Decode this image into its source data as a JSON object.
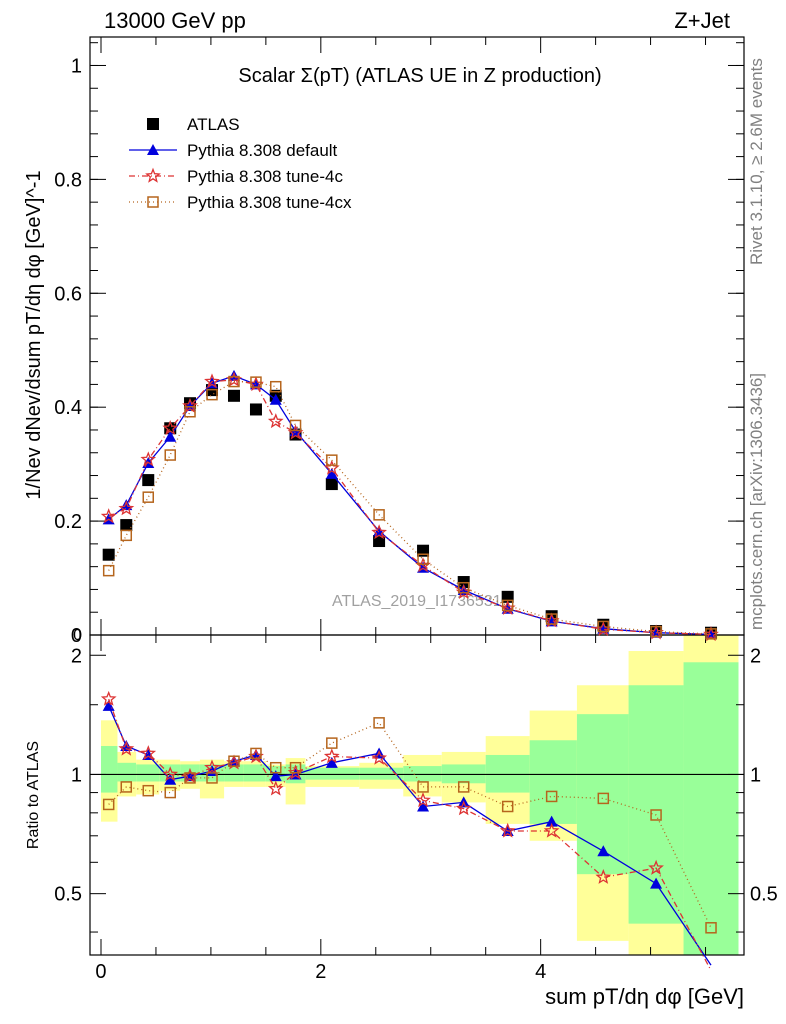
{
  "header": {
    "left": "13000 GeV pp",
    "right": "Z+Jet"
  },
  "side": {
    "rivet": "Rivet 3.1.10, ≥ 2.6M events",
    "mcplots": "mcplots.cern.ch [arXiv:1306.3436]"
  },
  "watermark": "ATLAS_2019_I1736531",
  "chart_data": [
    {
      "type": "scatter",
      "title": "Scalar Σ(pT) (ATLAS UE in Z production)",
      "xlabel": "sum pT/dη dφ [GeV]",
      "ylabel": "1/Nev dNev/dsum pT/dη dφ [GeV]^-1",
      "xlim": [
        -0.1,
        5.85
      ],
      "ylim": [
        0,
        1.05
      ],
      "yticks": [
        0,
        0.2,
        0.4,
        0.6,
        0.8,
        1
      ],
      "ytick_labels": [
        "0",
        "0.2",
        "0.4",
        "0.6",
        "0.8",
        "1"
      ],
      "legend_position": "top-left",
      "x": [
        0.07,
        0.23,
        0.43,
        0.63,
        0.81,
        1.01,
        1.21,
        1.41,
        1.59,
        1.77,
        2.1,
        2.53,
        2.93,
        3.3,
        3.7,
        4.1,
        4.57,
        5.05,
        5.55
      ],
      "series": [
        {
          "name": "ATLAS",
          "color": "#000000",
          "marker": "square",
          "values": [
            0.141,
            0.193,
            0.272,
            0.363,
            0.407,
            0.43,
            0.42,
            0.396,
            0.42,
            0.352,
            0.265,
            0.165,
            0.148,
            0.093,
            0.067,
            0.033,
            0.018,
            0.007,
            0.004
          ]
        },
        {
          "name": "Pythia 8.308 default",
          "color": "#0000dd",
          "marker": "triangle",
          "dash": "",
          "values": [
            0.203,
            0.228,
            0.302,
            0.348,
            0.402,
            0.442,
            0.455,
            0.44,
            0.413,
            0.358,
            0.283,
            0.182,
            0.118,
            0.079,
            0.046,
            0.024,
            0.011,
            0.004,
            0.001
          ]
        },
        {
          "name": "Pythia 8.308 tune-4c",
          "color": "#dd3333",
          "marker": "star",
          "dash": "6,3,1,3",
          "values": [
            0.208,
            0.222,
            0.308,
            0.363,
            0.402,
            0.445,
            0.448,
            0.44,
            0.375,
            0.355,
            0.293,
            0.18,
            0.122,
            0.075,
            0.047,
            0.025,
            0.01,
            0.004,
            0.001
          ]
        },
        {
          "name": "Pythia 8.308 tune-4cx",
          "color": "#b5651d",
          "marker": "opensquare",
          "dash": "1,3",
          "values": [
            0.113,
            0.175,
            0.242,
            0.316,
            0.392,
            0.422,
            0.445,
            0.444,
            0.436,
            0.368,
            0.307,
            0.211,
            0.133,
            0.083,
            0.052,
            0.028,
            0.015,
            0.006,
            0.002
          ]
        }
      ]
    },
    {
      "type": "scatter",
      "ylabel": "Ratio to ATLAS",
      "xlim": [
        -0.1,
        5.85
      ],
      "ylim": [
        0.35,
        2.25
      ],
      "xticks": [
        0,
        2,
        4
      ],
      "xtick_labels": [
        "0",
        "2",
        "4"
      ],
      "yticks": [
        0.5,
        1,
        2
      ],
      "ytick_labels": [
        "0.5",
        "1",
        "2"
      ],
      "bin_edges": [
        0,
        0.15,
        0.32,
        0.53,
        0.72,
        0.9,
        1.12,
        1.3,
        1.5,
        1.68,
        1.86,
        2.35,
        2.75,
        3.1,
        3.5,
        3.9,
        4.33,
        4.8,
        5.3,
        5.8
      ],
      "band_stat_lo": [
        0.9,
        0.96,
        0.96,
        0.96,
        0.96,
        0.96,
        0.96,
        0.96,
        0.96,
        0.95,
        0.97,
        0.97,
        0.96,
        0.95,
        0.9,
        0.75,
        0.56,
        0.42,
        0.33
      ],
      "band_stat_hi": [
        1.18,
        1.07,
        1.06,
        1.06,
        1.06,
        1.06,
        1.06,
        1.06,
        1.05,
        1.06,
        1.04,
        1.04,
        1.05,
        1.06,
        1.12,
        1.22,
        1.42,
        1.68,
        1.92
      ],
      "band_total_lo": [
        0.76,
        0.88,
        0.89,
        0.91,
        0.92,
        0.87,
        0.93,
        0.93,
        0.93,
        0.84,
        0.93,
        0.92,
        0.88,
        0.85,
        0.75,
        0.68,
        0.38,
        0.33,
        0.33
      ],
      "band_total_hi": [
        1.37,
        1.14,
        1.09,
        1.09,
        1.08,
        1.09,
        1.08,
        1.08,
        1.06,
        1.1,
        1.05,
        1.07,
        1.12,
        1.14,
        1.25,
        1.45,
        1.68,
        2.05,
        2.25
      ],
      "series": [
        {
          "name": "Pythia 8.308 default",
          "color": "#0000dd",
          "marker": "triangle",
          "dash": "",
          "values": [
            1.49,
            1.18,
            1.12,
            0.97,
            0.99,
            1.02,
            1.08,
            1.12,
            0.99,
            1.0,
            1.07,
            1.13,
            0.83,
            0.85,
            0.72,
            0.76,
            0.64,
            0.53,
            0.33
          ]
        },
        {
          "name": "Pythia 8.308 tune-4c",
          "color": "#dd3333",
          "marker": "star",
          "dash": "6,3,1,3",
          "values": [
            1.55,
            1.16,
            1.13,
            1.0,
            0.99,
            1.04,
            1.07,
            1.11,
            0.92,
            1.01,
            1.11,
            1.1,
            0.86,
            0.82,
            0.72,
            0.72,
            0.55,
            0.58,
            0.32
          ]
        },
        {
          "name": "Pythia 8.308 tune-4cx",
          "color": "#b5651d",
          "marker": "opensquare",
          "dash": "1,3",
          "values": [
            0.84,
            0.93,
            0.91,
            0.9,
            0.98,
            0.98,
            1.08,
            1.13,
            1.04,
            1.04,
            1.2,
            1.35,
            0.93,
            0.93,
            0.83,
            0.88,
            0.87,
            0.79,
            0.41
          ]
        }
      ]
    }
  ]
}
